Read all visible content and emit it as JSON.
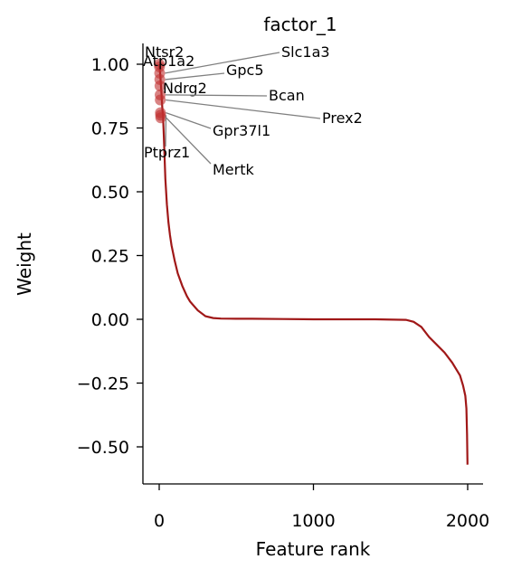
{
  "chart_data": {
    "type": "line",
    "title": "factor_1",
    "xlabel": "Feature rank",
    "ylabel": "Weight",
    "xlim": [
      -100,
      2100
    ],
    "ylim": [
      -0.65,
      1.08
    ],
    "xticks": [
      0,
      1000,
      2000
    ],
    "xtick_labels": [
      "0",
      "1000",
      "2000"
    ],
    "yticks": [
      1.0,
      0.75,
      0.5,
      0.25,
      0.0,
      -0.25,
      -0.5
    ],
    "ytick_labels": [
      "1.00",
      "0.75",
      "0.50",
      "0.25",
      "0.00",
      "−0.25",
      "−0.50"
    ],
    "grid": false,
    "line_color": "#a01818",
    "series": [
      {
        "x": [
          0,
          5,
          10,
          15,
          20,
          25,
          30,
          40,
          50,
          60,
          70,
          80,
          100,
          120,
          150,
          180,
          200,
          250,
          300,
          350,
          400,
          500,
          600,
          800,
          1000,
          1200,
          1400,
          1600,
          1650,
          1700,
          1750,
          1800,
          1850,
          1900,
          1950,
          1970,
          1985,
          1992,
          1996,
          1999
        ],
        "y": [
          1.0,
          0.97,
          0.93,
          0.88,
          0.83,
          0.79,
          0.72,
          0.55,
          0.45,
          0.38,
          0.33,
          0.29,
          0.23,
          0.18,
          0.13,
          0.09,
          0.07,
          0.035,
          0.012,
          0.005,
          0.003,
          0.002,
          0.002,
          0.001,
          0.0,
          0.0,
          0.0,
          -0.002,
          -0.01,
          -0.03,
          -0.07,
          -0.1,
          -0.13,
          -0.17,
          -0.22,
          -0.26,
          -0.3,
          -0.35,
          -0.45,
          -0.57
        ]
      }
    ],
    "highlighted_points": [
      {
        "label": "Ntsr2",
        "x": 1,
        "y": 1.0
      },
      {
        "label": "Atp1a2",
        "x": 2,
        "y": 0.99
      },
      {
        "label": "Slc1a3",
        "x": 3,
        "y": 0.965
      },
      {
        "label": "Gpc5",
        "x": 4,
        "y": 0.94
      },
      {
        "label": "Ndrg2",
        "x": 5,
        "y": 0.915
      },
      {
        "label": "Bcan",
        "x": 6,
        "y": 0.88
      },
      {
        "label": "Prex2",
        "x": 7,
        "y": 0.86
      },
      {
        "label": "Gpr37l1",
        "x": 8,
        "y": 0.81
      },
      {
        "label": "Ptprz1",
        "x": 9,
        "y": 0.8
      },
      {
        "label": "Mertk",
        "x": 10,
        "y": 0.79
      }
    ],
    "point_color": "#c03030"
  }
}
